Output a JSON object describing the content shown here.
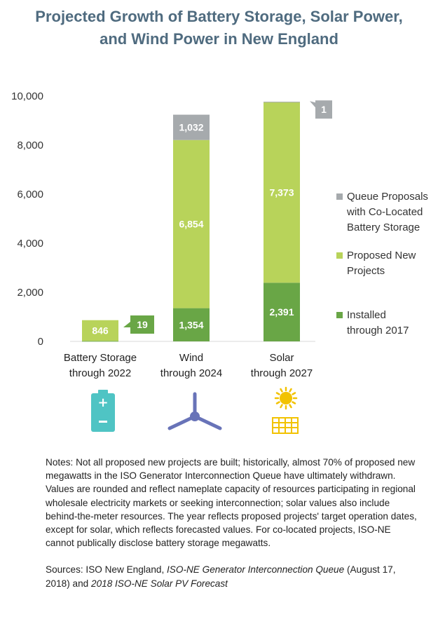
{
  "title_lines": [
    "Projected Growth of Battery Storage, Solar Power,",
    "and Wind Power in New England"
  ],
  "chart_data": {
    "type": "bar",
    "stacked": true,
    "categories": [
      [
        "Battery Storage",
        "through 2022"
      ],
      [
        "Wind",
        "through 2024"
      ],
      [
        "Solar",
        "through 2027"
      ]
    ],
    "series": [
      {
        "name": "Installed through 2017",
        "legend_lines": [
          "Installed",
          "through 2017"
        ],
        "color": "#69a646",
        "values": [
          19,
          1354,
          2391
        ],
        "labels": [
          "19",
          "1,354",
          "2,391"
        ]
      },
      {
        "name": "Proposed New Projects",
        "legend_lines": [
          "Proposed New",
          "Projects"
        ],
        "color": "#b8d35a",
        "values": [
          846,
          6854,
          7373
        ],
        "labels": [
          "846",
          "6,854",
          "7,373"
        ]
      },
      {
        "name": "Queue Proposals with Co-Located Battery Storage",
        "legend_lines": [
          "Queue Proposals",
          "with Co-Located",
          "Battery Storage"
        ],
        "color": "#a6aaad",
        "values": [
          0,
          1032,
          1
        ],
        "labels": [
          "",
          "1,032",
          "1"
        ]
      }
    ],
    "yticks": [
      "0",
      "2,000",
      "4,000",
      "6,000",
      "8,000",
      "10,000"
    ],
    "ylim": [
      0,
      10000
    ],
    "legend_position": "right",
    "grid": false
  },
  "icons": [
    {
      "name": "battery-icon",
      "color": "#4fc4c4"
    },
    {
      "name": "wind-turbine-icon",
      "color": "#6873b8"
    },
    {
      "name": "solar-panel-icon",
      "color": "#f2c200"
    }
  ],
  "notes": "Notes: Not all proposed new projects are built; historically, almost 70% of proposed new megawatts in the ISO Generator Interconnection Queue have ultimately withdrawn. Values are rounded and reflect nameplate capacity of resources participating in regional wholesale electricity markets or seeking interconnection; solar values also include behind-the-meter resources. The year reflects proposed projects' target operation dates, except for solar, which reflects forecasted values. For co-located projects, ISO-NE cannot publically disclose battery storage megawatts.",
  "sources": {
    "prefix": "Sources: ISO New England, ",
    "doc1": "ISO-NE Generator Interconnection Queue",
    "middle": " (August 17, 2018) and ",
    "doc2": "2018 ISO-NE Solar PV Forecast"
  }
}
